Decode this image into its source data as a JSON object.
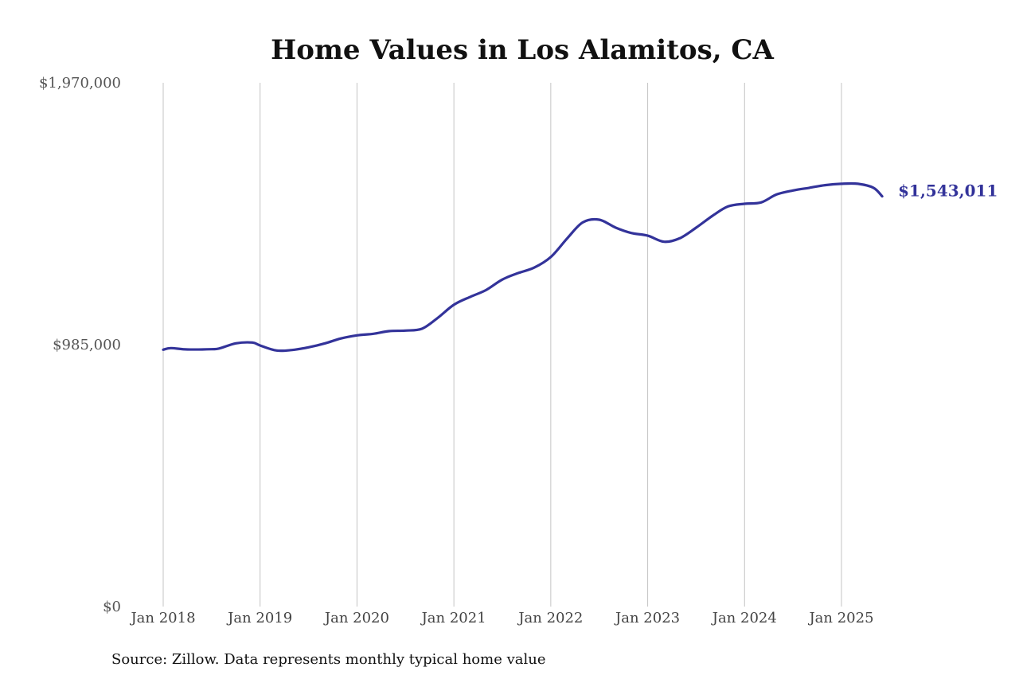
{
  "chart_data": {
    "type": "line",
    "title": "Home Values in Los Alamitos, CA",
    "xlabel": "",
    "ylabel": "",
    "ylim": [
      0,
      1970000
    ],
    "y_ticks": [
      {
        "value": 0,
        "label": "$0"
      },
      {
        "value": 985000,
        "label": "$985,000"
      },
      {
        "value": 1970000,
        "label": "$1,970,000"
      }
    ],
    "x_ticks": [
      {
        "value": 2018.0,
        "label": "Jan 2018"
      },
      {
        "value": 2019.0,
        "label": "Jan 2019"
      },
      {
        "value": 2020.0,
        "label": "Jan 2020"
      },
      {
        "value": 2021.0,
        "label": "Jan 2021"
      },
      {
        "value": 2022.0,
        "label": "Jan 2022"
      },
      {
        "value": 2023.0,
        "label": "Jan 2023"
      },
      {
        "value": 2024.0,
        "label": "Jan 2024"
      },
      {
        "value": 2025.0,
        "label": "Jan 2025"
      }
    ],
    "grid": "vertical",
    "legend": "none",
    "series": [
      {
        "color": "#33339a",
        "end_label": "$1,543,011",
        "points": [
          [
            2018.0,
            966000
          ],
          [
            2018.08,
            972000
          ],
          [
            2018.25,
            967000
          ],
          [
            2018.5,
            968000
          ],
          [
            2018.58,
            971000
          ],
          [
            2018.75,
            990000
          ],
          [
            2018.92,
            993000
          ],
          [
            2019.0,
            982000
          ],
          [
            2019.17,
            963000
          ],
          [
            2019.33,
            965000
          ],
          [
            2019.5,
            975000
          ],
          [
            2019.67,
            990000
          ],
          [
            2019.83,
            1008000
          ],
          [
            2020.0,
            1020000
          ],
          [
            2020.17,
            1026000
          ],
          [
            2020.33,
            1036000
          ],
          [
            2020.5,
            1038000
          ],
          [
            2020.67,
            1045000
          ],
          [
            2020.83,
            1085000
          ],
          [
            2021.0,
            1135000
          ],
          [
            2021.17,
            1165000
          ],
          [
            2021.33,
            1190000
          ],
          [
            2021.5,
            1230000
          ],
          [
            2021.67,
            1255000
          ],
          [
            2021.83,
            1275000
          ],
          [
            2022.0,
            1315000
          ],
          [
            2022.17,
            1385000
          ],
          [
            2022.33,
            1445000
          ],
          [
            2022.5,
            1455000
          ],
          [
            2022.67,
            1425000
          ],
          [
            2022.83,
            1405000
          ],
          [
            2023.0,
            1395000
          ],
          [
            2023.17,
            1372000
          ],
          [
            2023.33,
            1385000
          ],
          [
            2023.5,
            1425000
          ],
          [
            2023.67,
            1470000
          ],
          [
            2023.83,
            1505000
          ],
          [
            2024.0,
            1515000
          ],
          [
            2024.17,
            1520000
          ],
          [
            2024.33,
            1550000
          ],
          [
            2024.5,
            1565000
          ],
          [
            2024.67,
            1575000
          ],
          [
            2024.83,
            1585000
          ],
          [
            2025.0,
            1590000
          ],
          [
            2025.17,
            1590000
          ],
          [
            2025.33,
            1575000
          ],
          [
            2025.42,
            1543011
          ]
        ]
      }
    ]
  },
  "source_note": "Source: Zillow. Data represents monthly typical home value"
}
